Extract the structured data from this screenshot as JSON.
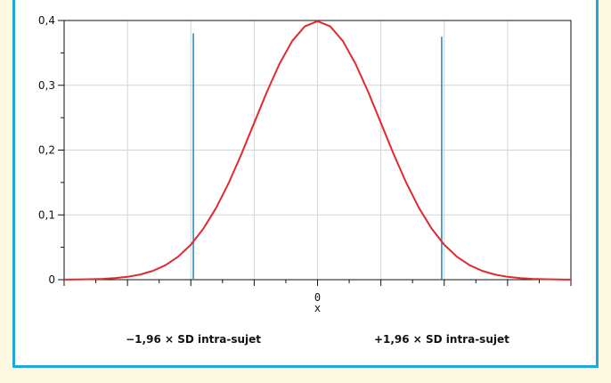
{
  "chart_data": {
    "type": "line",
    "title": "",
    "xlabel": "x",
    "ylabel": "",
    "xlim": [
      -4,
      4
    ],
    "ylim": [
      0,
      0.4
    ],
    "x_tick_labels": [
      {
        "value": 0,
        "label": "0"
      }
    ],
    "y_ticks": [
      {
        "value": 0,
        "label": "0"
      },
      {
        "value": 0.1,
        "label": "0,1"
      },
      {
        "value": 0.2,
        "label": "0,2"
      },
      {
        "value": 0.3,
        "label": "0,3"
      },
      {
        "value": 0.4,
        "label": "0,4"
      }
    ],
    "grid": true,
    "series": [
      {
        "color": "#e02a2f",
        "x": [
          -4,
          -3.8,
          -3.6,
          -3.4,
          -3.2,
          -3,
          -2.8,
          -2.6,
          -2.4,
          -2.2,
          -2,
          -1.8,
          -1.6,
          -1.4,
          -1.2,
          -1,
          -0.8,
          -0.6,
          -0.4,
          -0.2,
          0,
          0.2,
          0.4,
          0.6,
          0.8,
          1,
          1.2,
          1.4,
          1.6,
          1.8,
          2,
          2.2,
          2.4,
          2.6,
          2.8,
          3,
          3.2,
          3.4,
          3.6,
          3.8,
          4
        ],
        "y": [
          0.0001,
          0.0003,
          0.0006,
          0.0012,
          0.0024,
          0.0044,
          0.0079,
          0.0136,
          0.0224,
          0.0355,
          0.054,
          0.079,
          0.1109,
          0.1497,
          0.1942,
          0.242,
          0.2897,
          0.3332,
          0.3683,
          0.391,
          0.3989,
          0.391,
          0.3683,
          0.3332,
          0.2897,
          0.242,
          0.1942,
          0.1497,
          0.1109,
          0.079,
          0.054,
          0.0355,
          0.0224,
          0.0136,
          0.0079,
          0.0044,
          0.0024,
          0.0012,
          0.0006,
          0.0003,
          0.0001
        ]
      }
    ],
    "reference_lines": [
      {
        "x": -1.96,
        "y_top": 0.38,
        "color": "#1a86c4"
      },
      {
        "x": 1.96,
        "y_top": 0.375,
        "color": "#1a86c4"
      }
    ],
    "annotations": [
      {
        "text": "−1,96 × SD intra-sujet",
        "anchor_x": -1.96
      },
      {
        "text": "+1,96 × SD intra-sujet",
        "anchor_x": 1.96
      }
    ]
  }
}
